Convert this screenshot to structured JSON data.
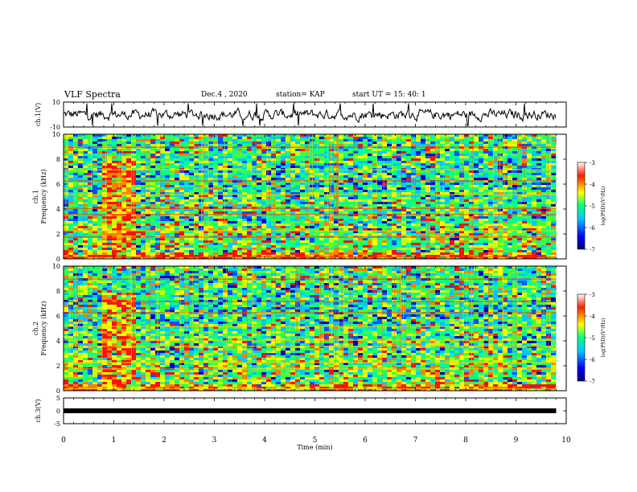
{
  "header": {
    "title": "VLF Spectra",
    "date": "Dec.4 , 2020",
    "station": "station= KAP",
    "start_ut": "start UT =  15: 40: 1"
  },
  "chart_data": [
    {
      "panel": "ch1-waveform",
      "type": "line",
      "ylabel": "ch.1(V)",
      "ylim": [
        -10,
        10
      ],
      "yticks": [
        "10",
        "-10"
      ],
      "xlim": [
        0,
        10
      ],
      "series": [
        {
          "color": "#000000"
        }
      ]
    },
    {
      "panel": "ch1-spectrogram",
      "type": "heatmap",
      "ylabel": "ch.1\nFrequency (kHz)",
      "ylim": [
        0,
        10
      ],
      "yticks": [
        "0",
        "2",
        "4",
        "6",
        "8",
        "10"
      ],
      "xlim": [
        0,
        10
      ],
      "data_end_min": 9.8,
      "burst_min": [
        0.72,
        1.35
      ],
      "colorbar": {
        "label": "log(PSD)(V²/Hz)",
        "range": [
          -7,
          -3
        ],
        "ticks": [
          "-3",
          "-4",
          "-5",
          "-6",
          "-7"
        ]
      }
    },
    {
      "panel": "ch2-spectrogram",
      "type": "heatmap",
      "ylabel": "ch.2\nFrequency (kHz)",
      "ylim": [
        0,
        10
      ],
      "yticks": [
        "0",
        "2",
        "4",
        "6",
        "8",
        "10"
      ],
      "xlim": [
        0,
        10
      ],
      "data_end_min": 9.8,
      "burst_min": [
        0.72,
        1.35
      ],
      "colorbar": {
        "label": "log(PSD)(V²/Hz)",
        "range": [
          -7,
          -3
        ],
        "ticks": [
          "-3",
          "-4",
          "-5",
          "-6",
          "-7"
        ]
      }
    },
    {
      "panel": "ch3-level",
      "type": "line",
      "ylabel": "ch.3(V)",
      "ylim": [
        -5,
        5
      ],
      "yticks": [
        "5",
        "0",
        "-5"
      ],
      "xlim": [
        0,
        10
      ],
      "xticks": [
        "0",
        "1",
        "2",
        "3",
        "4",
        "5",
        "6",
        "7",
        "8",
        "9",
        "10"
      ],
      "xlabel": "Time (min)",
      "value": 0
    }
  ]
}
